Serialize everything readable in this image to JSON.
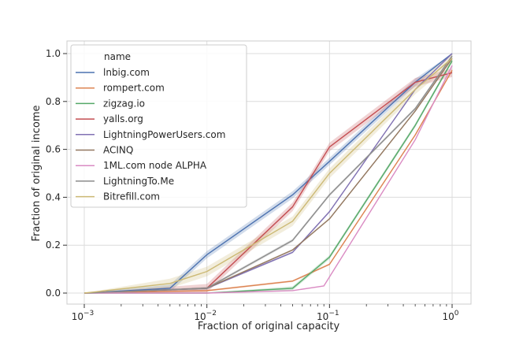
{
  "chart_data": {
    "type": "line",
    "xlabel": "Fraction of original capacity",
    "ylabel": "Fraction of original income",
    "xscale": "log",
    "xlim": [
      0.001,
      1
    ],
    "ylim": [
      0.0,
      1.0
    ],
    "x_ticks": [
      0.001,
      0.01,
      0.1,
      1
    ],
    "x_tick_labels": [
      {
        "base": "10",
        "exp": "−3"
      },
      {
        "base": "10",
        "exp": "−2"
      },
      {
        "base": "10",
        "exp": "−1"
      },
      {
        "base": "10",
        "exp": "0"
      }
    ],
    "y_ticks": [
      "0.0",
      "0.2",
      "0.4",
      "0.6",
      "0.8",
      "1.0"
    ],
    "grid": true,
    "legend_title": "name",
    "legend_position": "upper-left",
    "series": [
      {
        "name": "lnbig.com",
        "color": "#4c72b0",
        "points": [
          [
            0.001,
            0.0
          ],
          [
            0.005,
            0.02
          ],
          [
            0.01,
            0.16
          ],
          [
            0.05,
            0.41
          ],
          [
            0.1,
            0.55
          ],
          [
            0.5,
            0.88
          ],
          [
            1,
            1.0
          ]
        ],
        "band": 0.015
      },
      {
        "name": "rompert.com",
        "color": "#dd8452",
        "points": [
          [
            0.001,
            0.0
          ],
          [
            0.01,
            0.01
          ],
          [
            0.05,
            0.05
          ],
          [
            0.1,
            0.12
          ],
          [
            0.5,
            0.66
          ],
          [
            1,
            0.93
          ]
        ],
        "band": 0.004
      },
      {
        "name": "zigzag.io",
        "color": "#55a868",
        "points": [
          [
            0.001,
            0.0
          ],
          [
            0.01,
            0.0
          ],
          [
            0.05,
            0.02
          ],
          [
            0.1,
            0.15
          ],
          [
            0.5,
            0.7
          ],
          [
            1,
            0.97
          ]
        ],
        "band": 0.008
      },
      {
        "name": "yalls.org",
        "color": "#c44e52",
        "points": [
          [
            0.001,
            0.0
          ],
          [
            0.01,
            0.02
          ],
          [
            0.05,
            0.36
          ],
          [
            0.1,
            0.61
          ],
          [
            0.5,
            0.88
          ],
          [
            1,
            0.92
          ]
        ],
        "band": 0.018
      },
      {
        "name": "LightningPowerUsers.com",
        "color": "#8172b3",
        "points": [
          [
            0.001,
            0.0
          ],
          [
            0.01,
            0.02
          ],
          [
            0.05,
            0.17
          ],
          [
            0.1,
            0.34
          ],
          [
            0.5,
            0.85
          ],
          [
            1,
            1.0
          ]
        ],
        "band": 0.004
      },
      {
        "name": "ACINQ",
        "color": "#937860",
        "points": [
          [
            0.001,
            0.0
          ],
          [
            0.01,
            0.02
          ],
          [
            0.05,
            0.18
          ],
          [
            0.1,
            0.31
          ],
          [
            0.5,
            0.76
          ],
          [
            1,
            0.98
          ]
        ],
        "band": 0.004
      },
      {
        "name": "1ML.com node ALPHA",
        "color": "#da8bc3",
        "points": [
          [
            0.001,
            0.0
          ],
          [
            0.01,
            0.0
          ],
          [
            0.05,
            0.01
          ],
          [
            0.09,
            0.03
          ],
          [
            0.5,
            0.64
          ],
          [
            1,
            0.95
          ]
        ],
        "band": 0.0
      },
      {
        "name": "LightningTo.Me",
        "color": "#8c8c8c",
        "points": [
          [
            0.001,
            0.0
          ],
          [
            0.01,
            0.02
          ],
          [
            0.05,
            0.22
          ],
          [
            0.1,
            0.41
          ],
          [
            0.5,
            0.77
          ],
          [
            1,
            0.99
          ]
        ],
        "band": 0.006
      },
      {
        "name": "Bitrefill.com",
        "color": "#ccb974",
        "points": [
          [
            0.001,
            0.0
          ],
          [
            0.005,
            0.04
          ],
          [
            0.01,
            0.09
          ],
          [
            0.05,
            0.3
          ],
          [
            0.1,
            0.5
          ],
          [
            0.5,
            0.85
          ],
          [
            1,
            0.98
          ]
        ],
        "band": 0.02
      }
    ]
  }
}
